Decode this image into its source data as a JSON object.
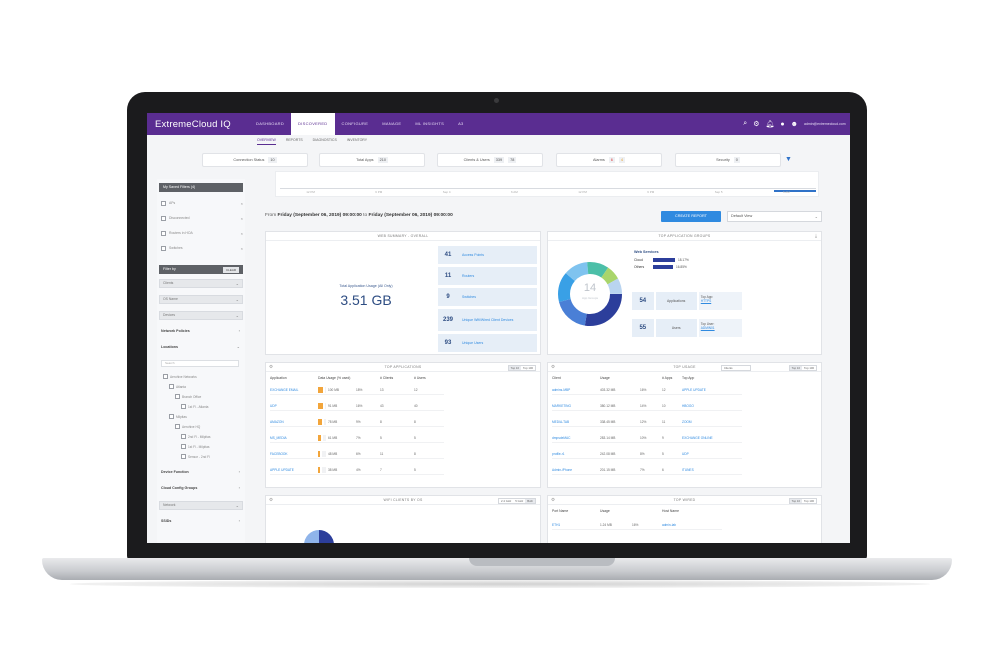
{
  "app": {
    "brand": "ExtremeCloud IQ",
    "nav_tabs": [
      "DASHBOARD",
      "DISCOVERED",
      "CONFIGURE",
      "MANAGE",
      "ML INSIGHTS",
      "A3"
    ],
    "active_nav": 1,
    "user_line": "admin@extremecloud.com"
  },
  "subtabs": [
    "OVERVIEW",
    "REPORTS",
    "DIAGNOSTICS",
    "INVENTORY"
  ],
  "summary": [
    {
      "label": "Connection Status",
      "count": "10"
    },
    {
      "label": "Total Apps",
      "count": "210"
    },
    {
      "label": "Clients & Users",
      "count": "339",
      "extra": "78"
    },
    {
      "label": "Alarms",
      "count": "6",
      "extra": "4"
    },
    {
      "label": "Security",
      "count": "0"
    }
  ],
  "timeline_ticks": [
    "12 PM",
    "6 PM",
    "Sep 4",
    "6 AM",
    "12 PM",
    "6 PM",
    "Sep 5",
    "6 AM"
  ],
  "sidebar": {
    "header": "My Saved Filters (4)",
    "saved": [
      "APs",
      "Disconnected",
      "Routers in HOA",
      "Switches"
    ],
    "filter_by": "Filter by",
    "clear": "CLEAR",
    "dropdowns": [
      "Clients",
      "OS Name",
      "Devices"
    ],
    "network_policies": "Network Policies",
    "locations": "Locations",
    "search_placeholder": "Search",
    "tree": [
      "Aerohive Networks",
      "Atlanta",
      "Branch Office",
      "1st Fl - Atlanta",
      "Milpitas",
      "Aerohive HQ",
      "2nd Fl - Milpitas",
      "1st Fl - Milpitas",
      "Sensor - 2nd Fl"
    ],
    "device_function": "Device Function",
    "cloud_config": "Cloud Config Groups",
    "network": "Network",
    "ssids": "SSIDs"
  },
  "range": {
    "prefix": "From",
    "start": "Friday (September 06, 2019) 09:00:00",
    "middle": "to",
    "end": "Friday (September 06, 2019) 09:00:00"
  },
  "create_report": "CREATE REPORT",
  "view_select": "Default View",
  "web_summary": {
    "title": "WEB SUMMARY - OVERALL",
    "usage_label": "Total Application Usage (All Only)",
    "usage_value": "3.51 GB",
    "stats": [
      {
        "num": "41",
        "label": "Access Points"
      },
      {
        "num": "11",
        "label": "Routers"
      },
      {
        "num": "9",
        "label": "Switches"
      },
      {
        "num": "239",
        "label": "Unique Wifi/Wired Client Devices"
      },
      {
        "num": "93",
        "label": "Unique Users"
      }
    ]
  },
  "top_app_groups": {
    "title": "TOP APPLICATION GROUPS",
    "center_num": "14",
    "center_label": "App Groups",
    "legend_title": "Web Services",
    "legend": [
      {
        "name": "Cloud",
        "value": "18.17%",
        "fraction": 0.18
      },
      {
        "name": "Others",
        "value": "16.85%",
        "fraction": 0.17
      }
    ],
    "apps_num": "54",
    "apps_label": "Applications",
    "apps_side": "Top App:",
    "apps_side_link": "HTTPS",
    "users_num": "55",
    "users_label": "Users",
    "users_side": "Top User:",
    "users_side_link": "ADMIN01"
  },
  "top_applications": {
    "title": "TOP APPLICATIONS",
    "toggle": [
      "Top 10",
      "Top 100"
    ],
    "headers": [
      "Application",
      "Data Usage (% used)",
      "# Clients",
      "# Users"
    ],
    "rows": [
      {
        "name": "EXCHANGE EMAIL",
        "usage": "100 MB",
        "pct": "18%",
        "clients": "13",
        "users": "12",
        "fill": 0.9
      },
      {
        "name": "UDP",
        "usage": "91 MB",
        "pct": "16%",
        "clients": "43",
        "users": "40",
        "fill": 0.8
      },
      {
        "name": "AMAZON",
        "usage": "78 MB",
        "pct": "9%",
        "clients": "8",
        "users": "8",
        "fill": 0.6
      },
      {
        "name": "MS_MEDIA",
        "usage": "61 MB",
        "pct": "7%",
        "clients": "5",
        "users": "5",
        "fill": 0.5
      },
      {
        "name": "FACEBOOK",
        "usage": "48 MB",
        "pct": "6%",
        "clients": "11",
        "users": "8",
        "fill": 0.4
      },
      {
        "name": "APPLE UPDATE",
        "usage": "38 MB",
        "pct": "4%",
        "clients": "7",
        "users": "5",
        "fill": 0.3
      }
    ]
  },
  "top_usage": {
    "title": "TOP USAGE",
    "select": "Clients",
    "toggle": [
      "Top 10",
      "Top 100"
    ],
    "headers": [
      "Client",
      "Usage",
      "# Apps",
      "Top App"
    ],
    "rows": [
      {
        "client": "admins-MBP",
        "usage": "403.32 MB",
        "pct": "16%",
        "apps": "12",
        "top_app": "APPLE UPDATE"
      },
      {
        "client": "MARKETING",
        "usage": "380.12 MB",
        "pct": "14%",
        "apps": "10",
        "top_app": "HBOGO"
      },
      {
        "client": "MEDIA-TAB",
        "usage": "338.45 MB",
        "pct": "12%",
        "apps": "11",
        "top_app": "ZOOM"
      },
      {
        "client": "dmpsdeMAC",
        "usage": "283.14 MB",
        "pct": "10%",
        "apps": "9",
        "top_app": "EXCHANGE ONLINE"
      },
      {
        "client": "profile-r1",
        "usage": "242.08 MB",
        "pct": "8%",
        "apps": "5",
        "top_app": "UDP"
      },
      {
        "client": "Admin-iPhone",
        "usage": "201.15 MB",
        "pct": "7%",
        "apps": "6",
        "top_app": "ITUNES"
      }
    ]
  },
  "wifi_clients": {
    "title": "WIFI CLIENTS BY OS",
    "toggle": [
      "2.4 GHz",
      "5 GHz",
      "Both"
    ]
  },
  "top_wired": {
    "title": "TOP WIRED",
    "toggle": [
      "Top 10",
      "Top 100"
    ],
    "headers": [
      "Port Name",
      "Usage",
      "Host Name"
    ],
    "rows": [
      {
        "port": "ETH1",
        "usage": "1.24 MB",
        "pct": "16%",
        "host": "admin-lab"
      }
    ]
  }
}
